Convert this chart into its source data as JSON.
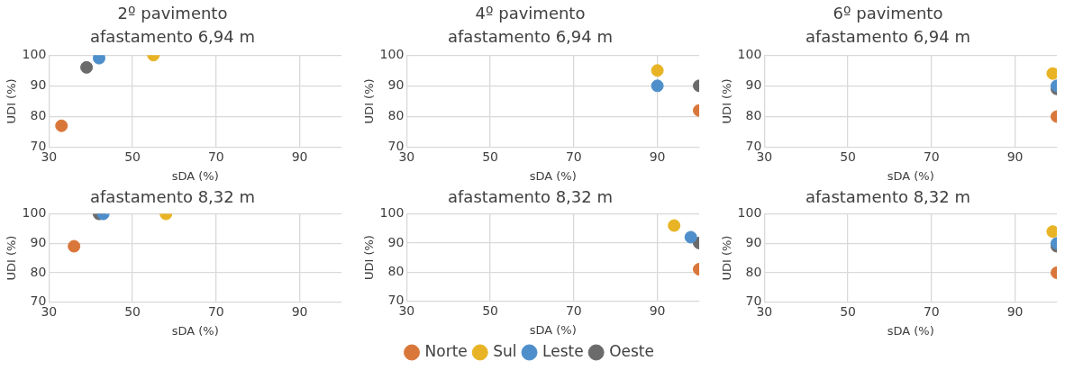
{
  "chart_data": [
    {
      "type": "scatter",
      "title": "2º pavimento",
      "subtitle": "afastamento 6,94 m",
      "xlabel": "sDA (%)",
      "ylabel": "UDI (%)",
      "xlim": [
        30,
        100
      ],
      "xticks": [
        30,
        50,
        70,
        90
      ],
      "ylim": [
        70,
        100
      ],
      "yticks": [
        70,
        80,
        90,
        100
      ],
      "grid": true,
      "marker": "circle",
      "legend": false,
      "series": [
        {
          "color": "#d9773a",
          "x": [
            33
          ],
          "values": [
            77
          ]
        },
        {
          "color": "#e8b425",
          "x": [
            55
          ],
          "values": [
            100
          ]
        },
        {
          "color": "#4e8fcb",
          "x": [
            42
          ],
          "values": [
            99
          ]
        },
        {
          "color": "#6b6b6b",
          "x": [
            39
          ],
          "values": [
            96
          ]
        }
      ]
    },
    {
      "type": "scatter",
      "title": "4º pavimento",
      "subtitle": "afastamento 6,94 m",
      "xlabel": "sDA (%)",
      "ylabel": "UDI (%)",
      "xlim": [
        30,
        100
      ],
      "xticks": [
        30,
        50,
        70,
        90
      ],
      "ylim": [
        70,
        100
      ],
      "yticks": [
        70,
        80,
        90,
        100
      ],
      "grid": true,
      "marker": "circle",
      "legend": false,
      "series": [
        {
          "color": "#d9773a",
          "x": [
            100
          ],
          "values": [
            82
          ]
        },
        {
          "color": "#e8b425",
          "x": [
            90
          ],
          "values": [
            95
          ]
        },
        {
          "color": "#4e8fcb",
          "x": [
            90
          ],
          "values": [
            90
          ]
        },
        {
          "color": "#6b6b6b",
          "x": [
            100
          ],
          "values": [
            90
          ]
        }
      ]
    },
    {
      "type": "scatter",
      "title": "6º pavimento",
      "subtitle": "afastamento 6,94 m",
      "xlabel": "sDA (%)",
      "ylabel": "UDI (%)",
      "xlim": [
        30,
        100
      ],
      "xticks": [
        30,
        50,
        70,
        90
      ],
      "ylim": [
        70,
        100
      ],
      "yticks": [
        70,
        80,
        90,
        100
      ],
      "grid": true,
      "marker": "circle",
      "legend": false,
      "series": [
        {
          "color": "#d9773a",
          "x": [
            100
          ],
          "values": [
            80
          ]
        },
        {
          "color": "#e8b425",
          "x": [
            99
          ],
          "values": [
            94
          ]
        },
        {
          "color": "#4e8fcb",
          "x": [
            100
          ],
          "values": [
            90
          ]
        },
        {
          "color": "#6b6b6b",
          "x": [
            100
          ],
          "values": [
            89
          ]
        }
      ]
    },
    {
      "type": "scatter",
      "title": "afastamento 8,32 m",
      "xlabel": "sDA (%)",
      "ylabel": "UDI (%)",
      "xlim": [
        30,
        100
      ],
      "xticks": [
        30,
        50,
        70,
        90
      ],
      "ylim": [
        70,
        100
      ],
      "yticks": [
        70,
        80,
        90,
        100
      ],
      "grid": true,
      "marker": "circle",
      "legend": false,
      "series": [
        {
          "color": "#d9773a",
          "x": [
            36
          ],
          "values": [
            89
          ]
        },
        {
          "color": "#e8b425",
          "x": [
            58
          ],
          "values": [
            100
          ]
        },
        {
          "color": "#4e8fcb",
          "x": [
            43
          ],
          "values": [
            100
          ]
        },
        {
          "color": "#6b6b6b",
          "x": [
            42
          ],
          "values": [
            100
          ]
        }
      ]
    },
    {
      "type": "scatter",
      "title": "afastamento 8,32 m",
      "xlabel": "sDA (%)",
      "ylabel": "UDI (%)",
      "xlim": [
        30,
        100
      ],
      "xticks": [
        30,
        50,
        70,
        90
      ],
      "ylim": [
        70,
        100
      ],
      "yticks": [
        70,
        80,
        90,
        100
      ],
      "grid": true,
      "marker": "circle",
      "legend": "bottom",
      "series": [
        {
          "name": "Norte",
          "color": "#d9773a",
          "x": [
            100
          ],
          "values": [
            81
          ]
        },
        {
          "name": "Sul",
          "color": "#e8b425",
          "x": [
            94
          ],
          "values": [
            96
          ]
        },
        {
          "name": "Leste",
          "color": "#4e8fcb",
          "x": [
            98
          ],
          "values": [
            92
          ]
        },
        {
          "name": "Oeste",
          "color": "#6b6b6b",
          "x": [
            100
          ],
          "values": [
            90
          ]
        }
      ]
    },
    {
      "type": "scatter",
      "title": "afastamento 8,32 m",
      "xlabel": "sDA (%)",
      "ylabel": "UDI (%)",
      "xlim": [
        30,
        100
      ],
      "xticks": [
        30,
        50,
        70,
        90
      ],
      "ylim": [
        70,
        100
      ],
      "yticks": [
        70,
        80,
        90,
        100
      ],
      "grid": true,
      "marker": "circle",
      "legend": false,
      "series": [
        {
          "color": "#d9773a",
          "x": [
            100
          ],
          "values": [
            80
          ]
        },
        {
          "color": "#e8b425",
          "x": [
            99
          ],
          "values": [
            94
          ]
        },
        {
          "color": "#4e8fcb",
          "x": [
            100
          ],
          "values": [
            90
          ]
        },
        {
          "color": "#6b6b6b",
          "x": [
            100
          ],
          "values": [
            89
          ]
        }
      ]
    }
  ]
}
